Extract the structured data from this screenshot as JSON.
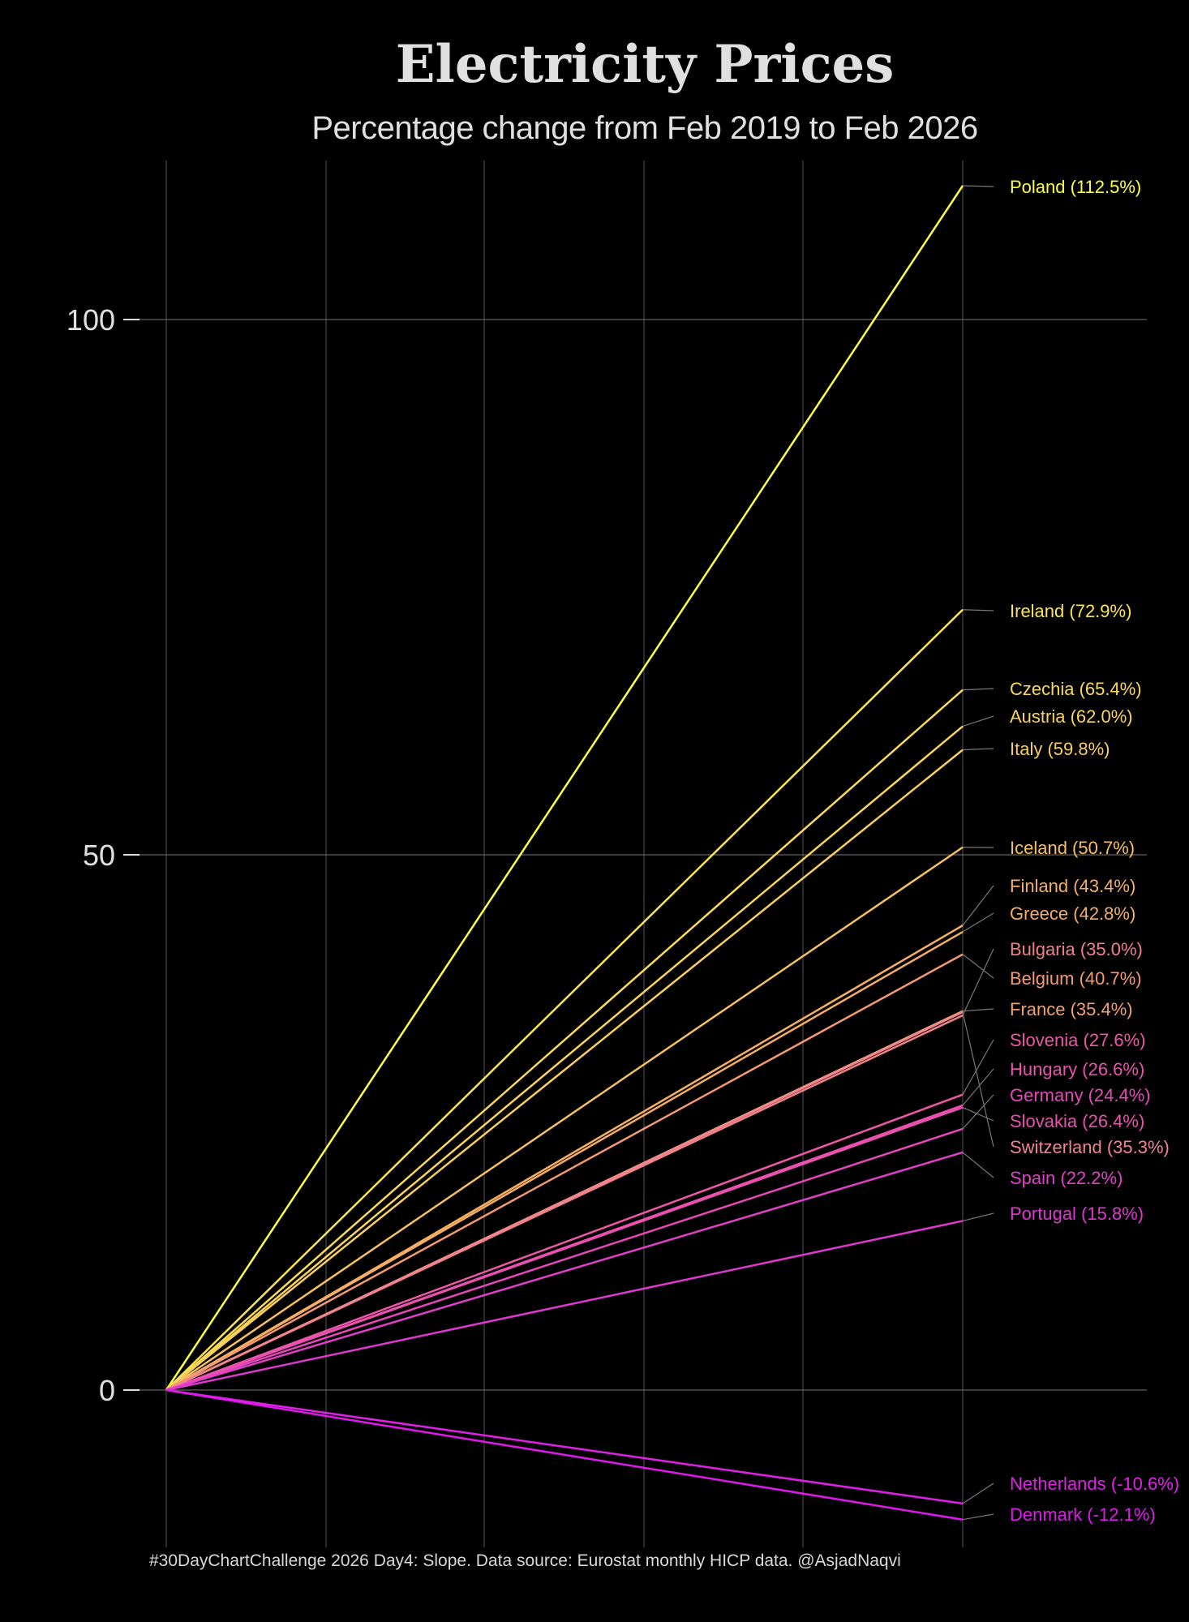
{
  "chart_data": {
    "type": "line",
    "title": "Electricity Prices",
    "subtitle": "Percentage change from Feb 2019 to Feb 2026",
    "caption": "#30DayChartChallenge 2026 Day4: Slope. Data source: Eurostat monthly HICP data. @AsjadNaqvi",
    "x": [
      "Feb 2019",
      "Feb 2026"
    ],
    "ylim": [
      -15,
      117
    ],
    "yticks": [
      0,
      50,
      100
    ],
    "grid": true,
    "legend": "none",
    "series": [
      {
        "name": "Poland",
        "label": "Poland (112.5%)",
        "values": [
          0,
          112.5
        ],
        "color": "#ffff40"
      },
      {
        "name": "Ireland",
        "label": "Ireland (72.9%)",
        "values": [
          0,
          72.9
        ],
        "color": "#fbe651"
      },
      {
        "name": "Czechia",
        "label": "Czechia (65.4%)",
        "values": [
          0,
          65.4
        ],
        "color": "#fadb55"
      },
      {
        "name": "Austria",
        "label": "Austria (62.0%)",
        "values": [
          0,
          62.0
        ],
        "color": "#f9d45a"
      },
      {
        "name": "Italy",
        "label": "Italy (59.8%)",
        "values": [
          0,
          59.8
        ],
        "color": "#f8cf5e"
      },
      {
        "name": "Iceland",
        "label": "Iceland (50.7%)",
        "values": [
          0,
          50.7
        ],
        "color": "#f6c060"
      },
      {
        "name": "Finland",
        "label": "Finland (43.4%)",
        "values": [
          0,
          43.4
        ],
        "color": "#f5b062"
      },
      {
        "name": "Greece",
        "label": "Greece (42.8%)",
        "values": [
          0,
          42.8
        ],
        "color": "#f5ad64"
      },
      {
        "name": "Bulgaria",
        "label": "Bulgaria (35.0%)",
        "values": [
          0,
          35.0
        ],
        "color": "#f0808a"
      },
      {
        "name": "Belgium",
        "label": "Belgium (40.7%)",
        "values": [
          0,
          40.7
        ],
        "color": "#f39a72"
      },
      {
        "name": "France",
        "label": "France (35.4%)",
        "values": [
          0,
          35.4
        ],
        "color": "#f3a070"
      },
      {
        "name": "Slovenia",
        "label": "Slovenia (27.6%)",
        "values": [
          0,
          27.6
        ],
        "color": "#ec58a6"
      },
      {
        "name": "Hungary",
        "label": "Hungary (26.6%)",
        "values": [
          0,
          26.6
        ],
        "color": "#ea52ae"
      },
      {
        "name": "Germany",
        "label": "Germany (24.4%)",
        "values": [
          0,
          24.4
        ],
        "color": "#e648ba"
      },
      {
        "name": "Slovakia",
        "label": "Slovakia (26.4%)",
        "values": [
          0,
          26.4
        ],
        "color": "#e950b0"
      },
      {
        "name": "Switzerland",
        "label": "Switzerland (35.3%)",
        "values": [
          0,
          35.3
        ],
        "color": "#f08490"
      },
      {
        "name": "Spain",
        "label": "Spain (22.2%)",
        "values": [
          0,
          22.2
        ],
        "color": "#e040c8"
      },
      {
        "name": "Portugal",
        "label": "Portugal (15.8%)",
        "values": [
          0,
          15.8
        ],
        "color": "#df38d0"
      },
      {
        "name": "Netherlands",
        "label": "Netherlands (-10.6%)",
        "values": [
          0,
          -10.6
        ],
        "color": "#e020e8"
      },
      {
        "name": "Denmark",
        "label": "Denmark (-12.1%)",
        "values": [
          0,
          -12.1
        ],
        "color": "#e018ec"
      }
    ]
  }
}
